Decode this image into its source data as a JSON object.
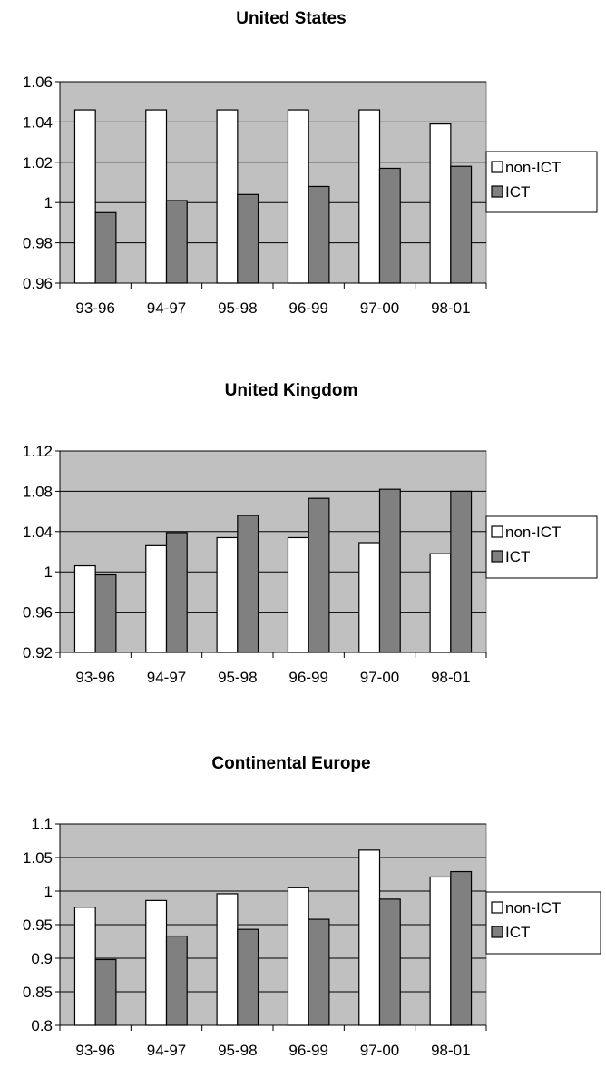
{
  "colors": {
    "plot_background": "#c0c0c0",
    "non_ict": "#ffffff",
    "ict": "#808080",
    "outline": "#000000"
  },
  "chart_data": [
    {
      "type": "bar",
      "title": "United States",
      "xlabel": "",
      "ylabel": "",
      "categories": [
        "93-96",
        "94-97",
        "95-98",
        "96-99",
        "97-00",
        "98-01"
      ],
      "series": [
        {
          "name": "non-ICT",
          "values": [
            1.046,
            1.046,
            1.046,
            1.046,
            1.046,
            1.039
          ]
        },
        {
          "name": "ICT",
          "values": [
            0.995,
            1.001,
            1.004,
            1.008,
            1.017,
            1.018
          ]
        }
      ],
      "ylim": [
        0.96,
        1.06
      ],
      "yticks": [
        "0.96",
        "0.98",
        "1",
        "1.02",
        "1.04",
        "1.06"
      ],
      "grid": true,
      "legend": "right"
    },
    {
      "type": "bar",
      "title": "United Kingdom",
      "xlabel": "",
      "ylabel": "",
      "categories": [
        "93-96",
        "94-97",
        "95-98",
        "96-99",
        "97-00",
        "98-01"
      ],
      "series": [
        {
          "name": "non-ICT",
          "values": [
            1.006,
            1.026,
            1.034,
            1.034,
            1.029,
            1.018
          ]
        },
        {
          "name": "ICT",
          "values": [
            0.997,
            1.039,
            1.056,
            1.073,
            1.082,
            1.08
          ]
        }
      ],
      "ylim": [
        0.92,
        1.12
      ],
      "yticks": [
        "0.92",
        "0.96",
        "1",
        "1.04",
        "1.08",
        "1.12"
      ],
      "grid": true,
      "legend": "right"
    },
    {
      "type": "bar",
      "title": "Continental Europe",
      "xlabel": "",
      "ylabel": "",
      "categories": [
        "93-96",
        "94-97",
        "95-98",
        "96-99",
        "97-00",
        "98-01"
      ],
      "series": [
        {
          "name": "non-ICT",
          "values": [
            0.976,
            0.986,
            0.996,
            1.005,
            1.061,
            1.021
          ]
        },
        {
          "name": "ICT",
          "values": [
            0.898,
            0.933,
            0.943,
            0.958,
            0.988,
            1.029
          ]
        }
      ],
      "ylim": [
        0.8,
        1.1
      ],
      "yticks": [
        "0.8",
        "0.85",
        "0.9",
        "0.95",
        "1",
        "1.05",
        "1.1"
      ],
      "grid": true,
      "legend": "right"
    }
  ]
}
